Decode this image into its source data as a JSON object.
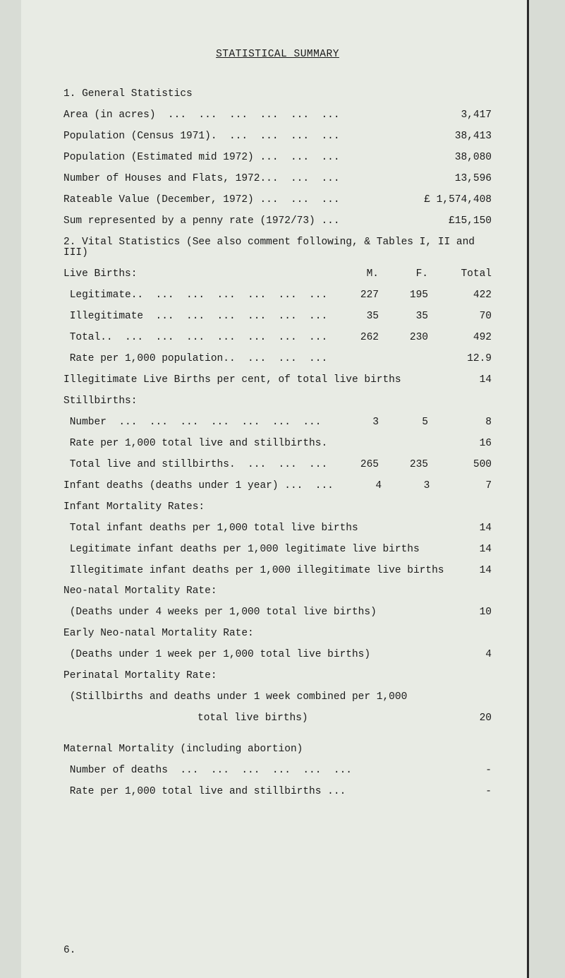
{
  "title": "STATISTICAL SUMMARY",
  "s1": {
    "heading": "1.  General Statistics",
    "area": {
      "label": "Area (in acres)  ...  ...  ...  ...  ...  ...",
      "value": "3,417"
    },
    "pop_census": {
      "label": "Population (Census 1971).  ...  ...  ...  ...",
      "value": "38,413"
    },
    "pop_est": {
      "label": "Population (Estimated mid 1972) ...  ...  ...",
      "value": "38,080"
    },
    "houses": {
      "label": "Number of Houses and Flats, 1972...  ...  ...",
      "value": "13,596"
    },
    "rateable": {
      "label": "Rateable Value (December, 1972) ...  ...  ...",
      "value": "£ 1,574,408"
    },
    "penny": {
      "label": "Sum represented by a penny rate (1972/73) ...",
      "value": "£15,150"
    }
  },
  "s2": {
    "heading": "2.  Vital Statistics (See also comment following, & Tables I, II and III)",
    "header": {
      "label": "Live Births:",
      "m": "M.",
      "f": "F.",
      "t": "Total"
    },
    "legit": {
      "label": " Legitimate..  ...  ...  ...  ...  ...  ...",
      "m": "227",
      "f": "195",
      "t": "422"
    },
    "illeg": {
      "label": " Illegitimate  ...  ...  ...  ...  ...  ...",
      "m": "35",
      "f": "35",
      "t": "70"
    },
    "total": {
      "label": " Total..  ...  ...  ...  ...  ...  ...  ...",
      "m": "262",
      "f": "230",
      "t": "492"
    },
    "rate": {
      "label": " Rate per 1,000 population..  ...  ...  ...",
      "t": "12.9"
    },
    "illeg_pct": {
      "label": "Illegitimate Live Births per cent, of total live births",
      "t": "14"
    },
    "still_h": "Stillbirths:",
    "still_num": {
      "label": " Number  ...  ...  ...  ...  ...  ...  ...",
      "m": "3",
      "f": "5",
      "t": "8"
    },
    "still_rate": {
      "label": " Rate per 1,000 total live and stillbirths.",
      "t": "16"
    },
    "still_tot": {
      "label": " Total live and stillbirths.  ...  ...  ...",
      "m": "265",
      "f": "235",
      "t": "500"
    },
    "infant": {
      "label": "Infant deaths (deaths under 1 year) ...  ...",
      "m": "4",
      "f": "3",
      "t": "7"
    },
    "imr_h": "Infant Mortality Rates:",
    "imr_total": {
      "label": " Total infant deaths per 1,000 total live births",
      "t": "14"
    },
    "imr_legit": {
      "label": " Legitimate infant deaths per 1,000 legitimate live births",
      "t": "14"
    },
    "imr_illeg": {
      "label": " Illegitimate infant deaths per 1,000 illegitimate live births",
      "t": "14"
    },
    "neo_h": "Neo-natal Mortality Rate:",
    "neo": {
      "label": " (Deaths under 4 weeks per 1,000 total live births)",
      "t": "10"
    },
    "eneo_h": "Early Neo-natal Mortality Rate:",
    "eneo": {
      "label": " (Deaths under 1 week per 1,000 total live births)",
      "t": "4"
    },
    "peri_h": "Perinatal Mortality Rate:",
    "peri1": " (Stillbirths and deaths under 1 week combined per 1,000",
    "peri2": {
      "label": "total live births)",
      "t": "20"
    },
    "mat_h": "Maternal Mortality (including abortion)",
    "mat_num": {
      "label": " Number of deaths  ...  ...  ...  ...  ...  ...",
      "t": "-"
    },
    "mat_rate": {
      "label": " Rate per 1,000 total live and stillbirths ...",
      "t": "-"
    }
  },
  "footer": "6."
}
